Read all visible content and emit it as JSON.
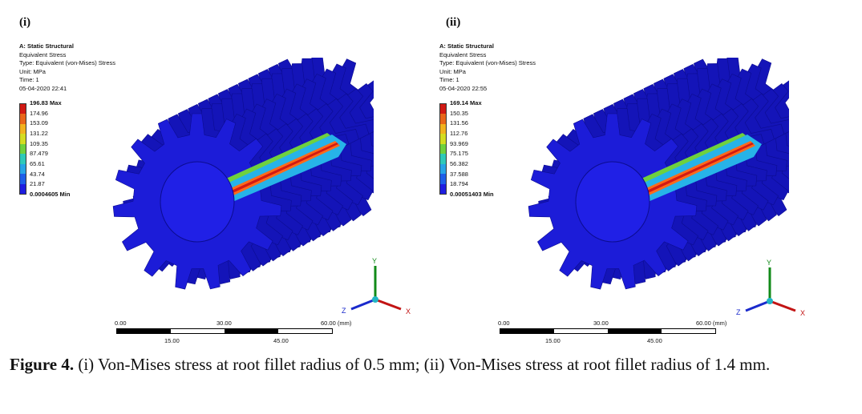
{
  "panels": [
    {
      "label": "(i)",
      "analysis": "A: Static Structural",
      "result": "Equivalent Stress",
      "type": "Type: Equivalent (von-Mises) Stress",
      "unit": "Unit: MPa",
      "time": "Time: 1",
      "date": "05-04-2020 22:41",
      "legend": [
        "196.83 Max",
        "174.96",
        "153.09",
        "131.22",
        "109.35",
        "87.479",
        "65.61",
        "43.74",
        "21.87",
        "0.0004605 Min"
      ],
      "scale": {
        "zero": "0.00",
        "mid": "30.00",
        "end": "60.00 (mm)",
        "q1": "15.00",
        "q3": "45.00"
      }
    },
    {
      "label": "(ii)",
      "analysis": "A: Static Structural",
      "result": "Equivalent Stress",
      "type": "Type: Equivalent (von-Mises) Stress",
      "unit": "Unit: MPa",
      "time": "Time: 1",
      "date": "05-04-2020 22:55",
      "legend": [
        "169.14 Max",
        "150.35",
        "131.56",
        "112.76",
        "93.969",
        "75.175",
        "56.382",
        "37.588",
        "18.794",
        "0.00051403 Min"
      ],
      "scale": {
        "zero": "0.00",
        "mid": "30.00",
        "end": "60.00 (mm)",
        "q1": "15.00",
        "q3": "45.00"
      }
    }
  ],
  "axes": {
    "x": "X",
    "y": "Y",
    "z": "Z"
  },
  "legend_colors": [
    "#d11a14",
    "#e9661a",
    "#f2b21e",
    "#d4dc21",
    "#6fd13e",
    "#2ec9b9",
    "#27a4e6",
    "#1d5ee8",
    "#1e1ee0"
  ],
  "gear_color": "#1a1ad6",
  "caption": {
    "figure_label": "Figure 4.",
    "text": " (i) Von-Mises stress at root fillet radius of 0.5 mm; (ii) Von-Mises stress at root fillet radius of 1.4 mm."
  }
}
